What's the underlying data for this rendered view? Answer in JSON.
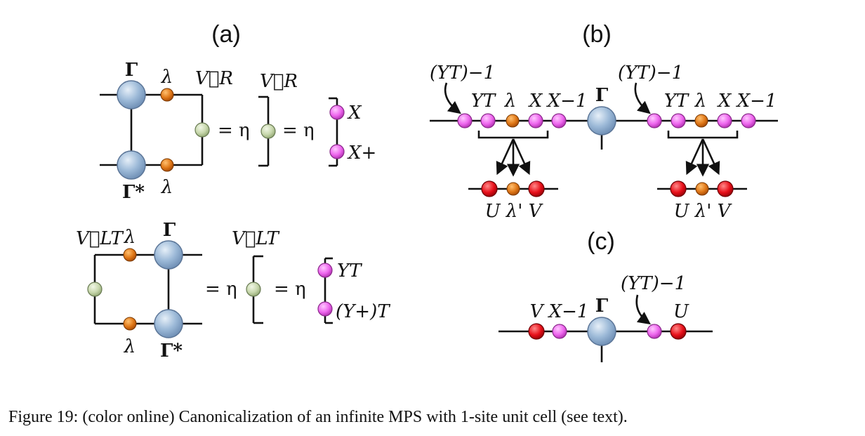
{
  "figure": {
    "caption": "Figure 19: (color online) Canonicalization of an infinite MPS with 1-site unit cell (see text).",
    "colors": {
      "gamma_tensor": "#9dbad8",
      "lambda_tensor": "#e07818",
      "vector_tensor": "#c7d7ac",
      "xy_tensor": "#ee66ee",
      "uv_tensor": "#e8101a",
      "lines": "#111111"
    },
    "panel_a": {
      "label": "(a)",
      "top": {
        "gamma": "Γ",
        "gamma_conj": "Γ*",
        "lambda_top": "λ",
        "lambda_bottom": "λ",
        "vector_left": "V⃗R",
        "vector_mid": "V⃗R",
        "eq1": "= η",
        "eq2": "= η",
        "x": "X",
        "x_dagger": "X+"
      },
      "bottom": {
        "gamma": "Γ",
        "gamma_conj": "Γ*",
        "lambda_top": "λ",
        "lambda_bottom": "λ",
        "vector_left": "V⃗LT",
        "vector_mid": "V⃗LT",
        "eq1": "= η",
        "eq2": "= η",
        "y_t": "YT",
        "y_dagger_t": "(Y+)T"
      }
    },
    "panel_b": {
      "label": "(b)",
      "gamma": "Γ",
      "left_inv": "(YT)−1",
      "right_inv": "(YT)−1",
      "left_chain": {
        "yt": "YT",
        "lam": "λ",
        "x": "X",
        "xinv": "X−1"
      },
      "right_chain": {
        "yt": "YT",
        "lam": "λ",
        "x": "X",
        "xinv": "X−1"
      },
      "left_result": "U λ' V",
      "right_result": "U λ' V"
    },
    "panel_c": {
      "label": "(c)",
      "v": "V",
      "xinv": "X−1",
      "gamma": "Γ",
      "yinv": "(YT)−1",
      "u": "U"
    }
  }
}
